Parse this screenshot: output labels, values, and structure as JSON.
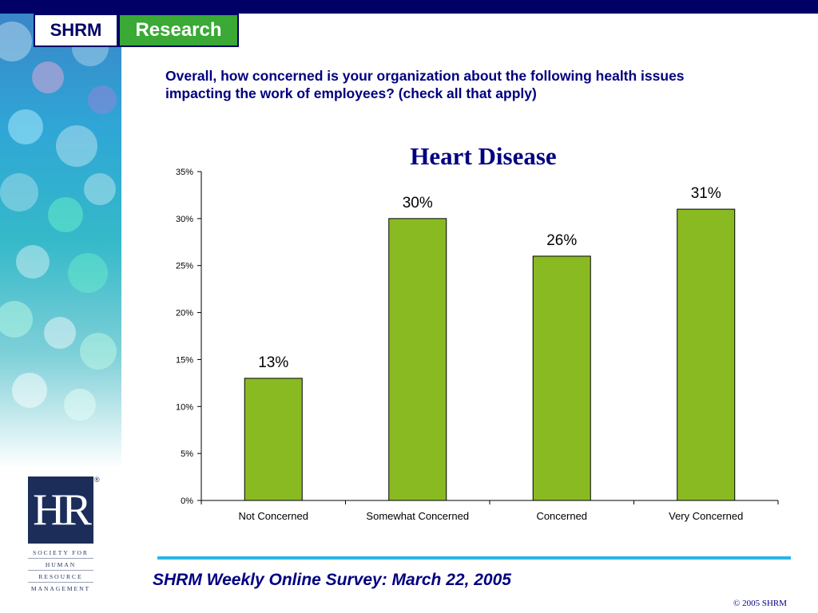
{
  "header": {
    "logo_left": "SHRM",
    "logo_right": "Research"
  },
  "question": "Overall, how concerned is your organization about the following health issues impacting the work of employees? (check all that apply)",
  "chart_data": {
    "type": "bar",
    "title": "Heart Disease",
    "categories": [
      "Not Concerned",
      "Somewhat Concerned",
      "Concerned",
      "Very Concerned"
    ],
    "values": [
      13,
      30,
      26,
      31
    ],
    "value_labels": [
      "13%",
      "30%",
      "26%",
      "31%"
    ],
    "ylim": [
      0,
      35
    ],
    "yticks": [
      0,
      5,
      10,
      15,
      20,
      25,
      30,
      35
    ],
    "ytick_labels": [
      "0%",
      "5%",
      "10%",
      "15%",
      "20%",
      "25%",
      "30%",
      "35%"
    ],
    "xlabel": "",
    "ylabel": "",
    "grid": false,
    "bar_color": "#8aba22"
  },
  "hr_logo": {
    "mark": "HR",
    "registered": "®",
    "lines": [
      "SOCIETY FOR",
      "HUMAN",
      "RESOURCE",
      "MANAGEMENT"
    ]
  },
  "footer": {
    "survey": "SHRM Weekly Online Survey: March 22, 2005",
    "copyright": "© 2005 SHRM"
  }
}
